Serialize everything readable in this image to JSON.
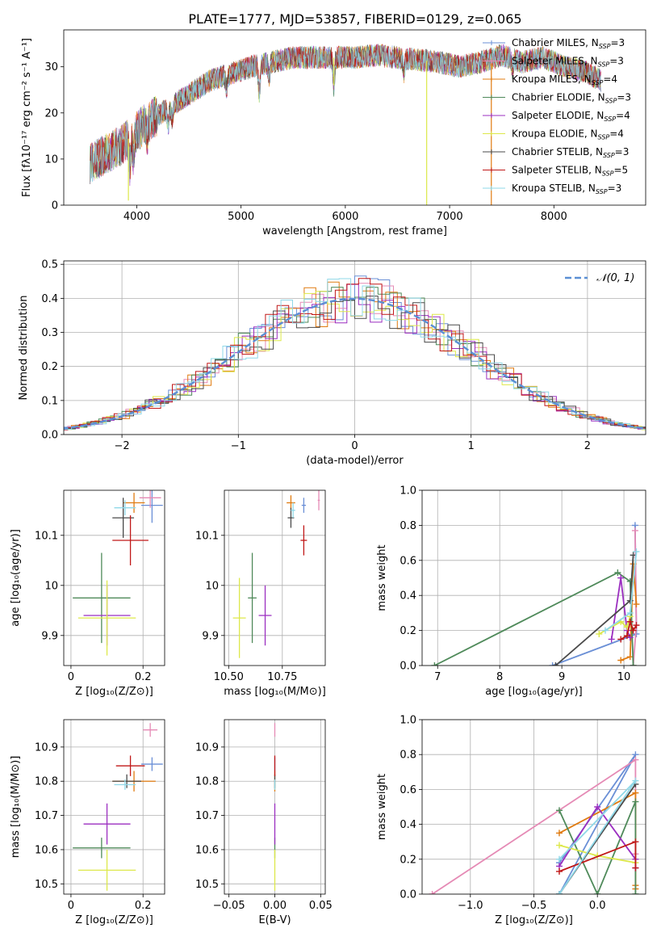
{
  "title": "PLATE=1777, MJD=53857, FIBERID=0129, z=0.065",
  "colors": {
    "Chabrier MILES": "#6a8fd6",
    "Salpeter MILES": "#e58ab5",
    "Kroupa MILES": "#e07b10",
    "Chabrier ELODIE": "#4f8a5a",
    "Salpeter ELODIE": "#9b2fc0",
    "Kroupa ELODIE": "#dde84a",
    "Chabrier STELIB": "#4a4a4a",
    "Salpeter STELIB": "#c01818",
    "Kroupa STELIB": "#8fd8e8",
    "gaussian": "#5b8fd4"
  },
  "chart_data": [
    {
      "id": "spectrum",
      "type": "line",
      "title": "PLATE=1777, MJD=53857, FIBERID=0129, z=0.065",
      "xlabel": "wavelength [Angstrom, rest frame]",
      "ylabel": "Flux [fλ10⁻¹⁷ erg cm⁻² s⁻¹ A⁻¹]",
      "xlim": [
        3300,
        8880
      ],
      "ylim": [
        0,
        38
      ],
      "xticks": [
        4000,
        5000,
        6000,
        7000,
        8000
      ],
      "yticks": [
        0,
        10,
        20,
        30
      ],
      "grid": false,
      "legend_position": "top-right",
      "legend": [
        "Chabrier MILES, N_SSP=3",
        "Salpeter MILES, N_SSP=3",
        "Kroupa MILES, N_SSP=4",
        "Chabrier ELODIE, N_SSP=3",
        "Salpeter ELODIE, N_SSP=4",
        "Kroupa ELODIE, N_SSP=4",
        "Chabrier STELIB, N_SSP=3",
        "Salpeter STELIB, N_SSP=5",
        "Kroupa STELIB, N_SSP=3"
      ],
      "continuum": {
        "x": [
          3550,
          3700,
          3850,
          3950,
          4100,
          4300,
          4500,
          4700,
          4900,
          5100,
          5300,
          5500,
          5700,
          5900,
          6100,
          6300,
          6500,
          6700,
          6900,
          7100,
          7300,
          7500,
          7700,
          7900,
          8100,
          8300,
          8450
        ],
        "y": [
          9,
          11,
          13,
          15,
          18,
          21,
          24,
          27,
          28.5,
          30,
          31,
          32,
          32,
          32,
          32,
          32.5,
          32,
          31.5,
          31,
          30,
          31,
          32.5,
          31,
          32,
          30,
          29,
          27
        ]
      },
      "spikes": [
        {
          "x": 3920,
          "y": 1
        },
        {
          "x": 5890,
          "y": 26
        },
        {
          "x": 6780,
          "y": 0
        },
        {
          "x": 7400,
          "y": 0
        }
      ]
    },
    {
      "id": "residuals",
      "type": "histogram",
      "xlabel": "(data-model)/error",
      "ylabel": "Normed distribution",
      "xlim": [
        -2.5,
        2.5
      ],
      "ylim": [
        0,
        0.51
      ],
      "xticks": [
        -2,
        -1,
        0,
        1,
        2
      ],
      "yticks": [
        0.0,
        0.1,
        0.2,
        0.3,
        0.4,
        0.5
      ],
      "grid": true,
      "bin_width": 0.1,
      "legend": [
        "𝒩(0, 1)"
      ],
      "legend_position": "top-right",
      "peak_values": [
        0.49,
        0.48,
        0.47,
        0.45,
        0.44,
        0.42
      ]
    },
    {
      "id": "Z-age",
      "type": "errorbar",
      "xlabel": "Z [log₁₀(Z/Z⊙)]",
      "ylabel": "age  [log₁₀(age/yr)]",
      "xlim": [
        -0.02,
        0.26
      ],
      "ylim": [
        9.84,
        10.19
      ],
      "xticks": [
        0.0,
        0.2
      ],
      "yticks": [
        9.9,
        10.0,
        10.1
      ],
      "grid": true,
      "points": [
        {
          "model": "Chabrier MILES",
          "x": 0.225,
          "y": 10.16,
          "xerr": 0.03,
          "yerr": 0.035
        },
        {
          "model": "Salpeter MILES",
          "x": 0.22,
          "y": 10.175,
          "xerr": 0.03,
          "yerr": 0.02
        },
        {
          "model": "Kroupa MILES",
          "x": 0.175,
          "y": 10.165,
          "xerr": 0.03,
          "yerr": 0.02
        },
        {
          "model": "Chabrier ELODIE",
          "x": 0.085,
          "y": 9.975,
          "xerr": 0.08,
          "yerr": 0.09
        },
        {
          "model": "Salpeter ELODIE",
          "x": 0.1,
          "y": 9.94,
          "xerr": 0.065,
          "yerr": 0.06
        },
        {
          "model": "Kroupa ELODIE",
          "x": 0.1,
          "y": 9.935,
          "xerr": 0.08,
          "yerr": 0.075
        },
        {
          "model": "Chabrier STELIB",
          "x": 0.145,
          "y": 10.135,
          "xerr": 0.03,
          "yerr": 0.04
        },
        {
          "model": "Salpeter STELIB",
          "x": 0.165,
          "y": 10.09,
          "xerr": 0.05,
          "yerr": 0.05
        },
        {
          "model": "Kroupa STELIB",
          "x": 0.15,
          "y": 10.155,
          "xerr": 0.03,
          "yerr": 0.015
        }
      ]
    },
    {
      "id": "mass-age",
      "type": "errorbar",
      "xlabel": "mass [log₁₀(M/M⊙)]",
      "ylabel": "",
      "xlim": [
        10.48,
        10.95
      ],
      "ylim": [
        9.84,
        10.19
      ],
      "xticks": [
        10.5,
        10.75
      ],
      "xticklabels": [
        "10.50",
        "10.75"
      ],
      "yticks": [
        9.9,
        10.0,
        10.1
      ],
      "grid": true,
      "points": [
        {
          "model": "Chabrier MILES",
          "x": 10.85,
          "y": 10.16,
          "xerr": 0.01,
          "yerr": 0.015
        },
        {
          "model": "Salpeter MILES",
          "x": 10.92,
          "y": 10.17,
          "xerr": 0.005,
          "yerr": 0.02
        },
        {
          "model": "Kroupa MILES",
          "x": 10.79,
          "y": 10.165,
          "xerr": 0.02,
          "yerr": 0.015
        },
        {
          "model": "Chabrier ELODIE",
          "x": 10.61,
          "y": 9.975,
          "xerr": 0.02,
          "yerr": 0.09
        },
        {
          "model": "Salpeter ELODIE",
          "x": 10.67,
          "y": 9.94,
          "xerr": 0.03,
          "yerr": 0.06
        },
        {
          "model": "Kroupa ELODIE",
          "x": 10.55,
          "y": 9.935,
          "xerr": 0.03,
          "yerr": 0.08
        },
        {
          "model": "Chabrier STELIB",
          "x": 10.79,
          "y": 10.135,
          "xerr": 0.015,
          "yerr": 0.02
        },
        {
          "model": "Salpeter STELIB",
          "x": 10.85,
          "y": 10.09,
          "xerr": 0.015,
          "yerr": 0.03
        },
        {
          "model": "Kroupa STELIB",
          "x": 10.8,
          "y": 10.15,
          "xerr": 0.01,
          "yerr": 0.015
        }
      ]
    },
    {
      "id": "age-weight",
      "type": "line",
      "xlabel": "age  [log₁₀(age/yr)]",
      "ylabel": "mass weight",
      "xlim": [
        6.75,
        10.35
      ],
      "ylim": [
        0,
        1
      ],
      "xticks": [
        7,
        8,
        9,
        10
      ],
      "yticks": [
        0.0,
        0.2,
        0.4,
        0.6,
        0.8,
        1.0
      ],
      "grid": true,
      "series": [
        {
          "model": "Chabrier MILES",
          "x": [
            8.85,
            10.2,
            10.18
          ],
          "y": [
            0.0,
            0.18,
            0.8
          ]
        },
        {
          "model": "Salpeter MILES",
          "x": [
            10.15,
            10.2,
            10.18
          ],
          "y": [
            0.0,
            0.23,
            0.77
          ]
        },
        {
          "model": "Kroupa MILES",
          "x": [
            9.95,
            10.1,
            10.15,
            10.2
          ],
          "y": [
            0.03,
            0.05,
            0.58,
            0.35
          ]
        },
        {
          "model": "Chabrier ELODIE",
          "x": [
            6.95,
            9.9,
            10.1,
            10.15
          ],
          "y": [
            0.0,
            0.53,
            0.48,
            0.0
          ]
        },
        {
          "model": "Salpeter ELODIE",
          "x": [
            9.8,
            9.95,
            10.05,
            10.1
          ],
          "y": [
            0.15,
            0.5,
            0.2,
            0.16
          ]
        },
        {
          "model": "Kroupa ELODIE",
          "x": [
            9.6,
            9.95,
            10.05,
            10.1
          ],
          "y": [
            0.18,
            0.25,
            0.22,
            0.28
          ]
        },
        {
          "model": "Chabrier STELIB",
          "x": [
            8.9,
            10.1,
            10.15
          ],
          "y": [
            0.0,
            0.37,
            0.63
          ]
        },
        {
          "model": "Salpeter STELIB",
          "x": [
            9.95,
            10.05,
            10.1,
            10.15,
            10.2
          ],
          "y": [
            0.15,
            0.17,
            0.25,
            0.2,
            0.23
          ]
        },
        {
          "model": "Kroupa STELIB",
          "x": [
            9.7,
            10.1,
            10.2
          ],
          "y": [
            0.2,
            0.3,
            0.65
          ]
        }
      ]
    },
    {
      "id": "Z-mass",
      "type": "errorbar",
      "xlabel": "Z [log₁₀(Z/Z⊙)]",
      "ylabel": "mass [log₁₀(M/M⊙)]",
      "xlim": [
        -0.02,
        0.26
      ],
      "ylim": [
        10.47,
        10.98
      ],
      "xticks": [
        0.0,
        0.2
      ],
      "yticks": [
        10.5,
        10.6,
        10.7,
        10.8,
        10.9
      ],
      "grid": true,
      "points": [
        {
          "model": "Chabrier MILES",
          "x": 0.225,
          "y": 10.85,
          "xerr": 0.03,
          "yerr": 0.02
        },
        {
          "model": "Salpeter MILES",
          "x": 0.22,
          "y": 10.95,
          "xerr": 0.02,
          "yerr": 0.02
        },
        {
          "model": "Kroupa MILES",
          "x": 0.175,
          "y": 10.8,
          "xerr": 0.06,
          "yerr": 0.03
        },
        {
          "model": "Chabrier ELODIE",
          "x": 0.085,
          "y": 10.605,
          "xerr": 0.08,
          "yerr": 0.03
        },
        {
          "model": "Salpeter ELODIE",
          "x": 0.1,
          "y": 10.675,
          "xerr": 0.065,
          "yerr": 0.06
        },
        {
          "model": "Kroupa ELODIE",
          "x": 0.1,
          "y": 10.54,
          "xerr": 0.08,
          "yerr": 0.06
        },
        {
          "model": "Chabrier STELIB",
          "x": 0.155,
          "y": 10.8,
          "xerr": 0.04,
          "yerr": 0.02
        },
        {
          "model": "Salpeter STELIB",
          "x": 0.165,
          "y": 10.845,
          "xerr": 0.04,
          "yerr": 0.03
        },
        {
          "model": "Kroupa STELIB",
          "x": 0.15,
          "y": 10.79,
          "xerr": 0.03,
          "yerr": 0.015
        }
      ]
    },
    {
      "id": "EBV-mass",
      "type": "errorbar",
      "xlabel": "E(B-V)",
      "ylabel": "",
      "xlim": [
        -0.055,
        0.055
      ],
      "ylim": [
        10.47,
        10.98
      ],
      "xticks": [
        -0.05,
        0.0,
        0.05
      ],
      "xticklabels": [
        "−0.05",
        "0.00",
        "0.05"
      ],
      "yticks": [
        10.5,
        10.6,
        10.7,
        10.8,
        10.9
      ],
      "grid": true,
      "points": [
        {
          "model": "Chabrier MILES",
          "x": 0,
          "y": 10.85,
          "xerr": 0,
          "yerr": 0.02
        },
        {
          "model": "Salpeter MILES",
          "x": 0,
          "y": 10.95,
          "xerr": 0,
          "yerr": 0.02
        },
        {
          "model": "Kroupa MILES",
          "x": 0,
          "y": 10.8,
          "xerr": 0,
          "yerr": 0.03
        },
        {
          "model": "Chabrier ELODIE",
          "x": 0,
          "y": 10.605,
          "xerr": 0,
          "yerr": 0.03
        },
        {
          "model": "Salpeter ELODIE",
          "x": 0,
          "y": 10.675,
          "xerr": 0,
          "yerr": 0.06
        },
        {
          "model": "Kroupa ELODIE",
          "x": 0,
          "y": 10.54,
          "xerr": 0,
          "yerr": 0.06
        },
        {
          "model": "Chabrier STELIB",
          "x": 0,
          "y": 10.8,
          "xerr": 0,
          "yerr": 0.02
        },
        {
          "model": "Salpeter STELIB",
          "x": 0,
          "y": 10.845,
          "xerr": 0,
          "yerr": 0.03
        },
        {
          "model": "Kroupa STELIB",
          "x": 0,
          "y": 10.79,
          "xerr": 0,
          "yerr": 0.015
        }
      ]
    },
    {
      "id": "Z-weight",
      "type": "line",
      "xlabel": "Z [log₁₀(Z/Z⊙)]",
      "ylabel": "mass weight",
      "xlim": [
        -1.38,
        0.38
      ],
      "ylim": [
        0,
        1
      ],
      "xticks": [
        -1.0,
        -0.5,
        0.0
      ],
      "xticklabels": [
        "−1.0",
        "−0.5",
        "0.0"
      ],
      "yticks": [
        0.0,
        0.2,
        0.4,
        0.6,
        0.8,
        1.0
      ],
      "grid": true,
      "series": [
        {
          "model": "Chabrier MILES",
          "x": [
            -0.3,
            0.3,
            -0.3
          ],
          "y": [
            0.0,
            0.8,
            0.18
          ]
        },
        {
          "model": "Salpeter MILES",
          "x": [
            -1.3,
            0.3,
            0.3
          ],
          "y": [
            0.0,
            0.77,
            0.23
          ]
        },
        {
          "model": "Kroupa MILES",
          "x": [
            -0.3,
            0.3,
            0.3,
            0.3
          ],
          "y": [
            0.35,
            0.58,
            0.05,
            0.03
          ]
        },
        {
          "model": "Chabrier ELODIE",
          "x": [
            -0.3,
            0.0,
            0.3,
            0.3
          ],
          "y": [
            0.48,
            0.0,
            0.53,
            0.0
          ]
        },
        {
          "model": "Salpeter ELODIE",
          "x": [
            -0.3,
            0.0,
            0.3,
            0.3
          ],
          "y": [
            0.16,
            0.5,
            0.2,
            0.15
          ]
        },
        {
          "model": "Kroupa ELODIE",
          "x": [
            -0.3,
            0.0,
            0.3
          ],
          "y": [
            0.28,
            0.22,
            0.18
          ]
        },
        {
          "model": "Chabrier STELIB",
          "x": [
            -0.3,
            0.3
          ],
          "y": [
            0.0,
            0.63
          ]
        },
        {
          "model": "Salpeter STELIB",
          "x": [
            -0.3,
            0.3,
            0.3
          ],
          "y": [
            0.13,
            0.3,
            0.15
          ]
        },
        {
          "model": "Kroupa STELIB",
          "x": [
            -0.3,
            0.3,
            -0.3
          ],
          "y": [
            0.2,
            0.65,
            0.0
          ]
        }
      ]
    }
  ]
}
